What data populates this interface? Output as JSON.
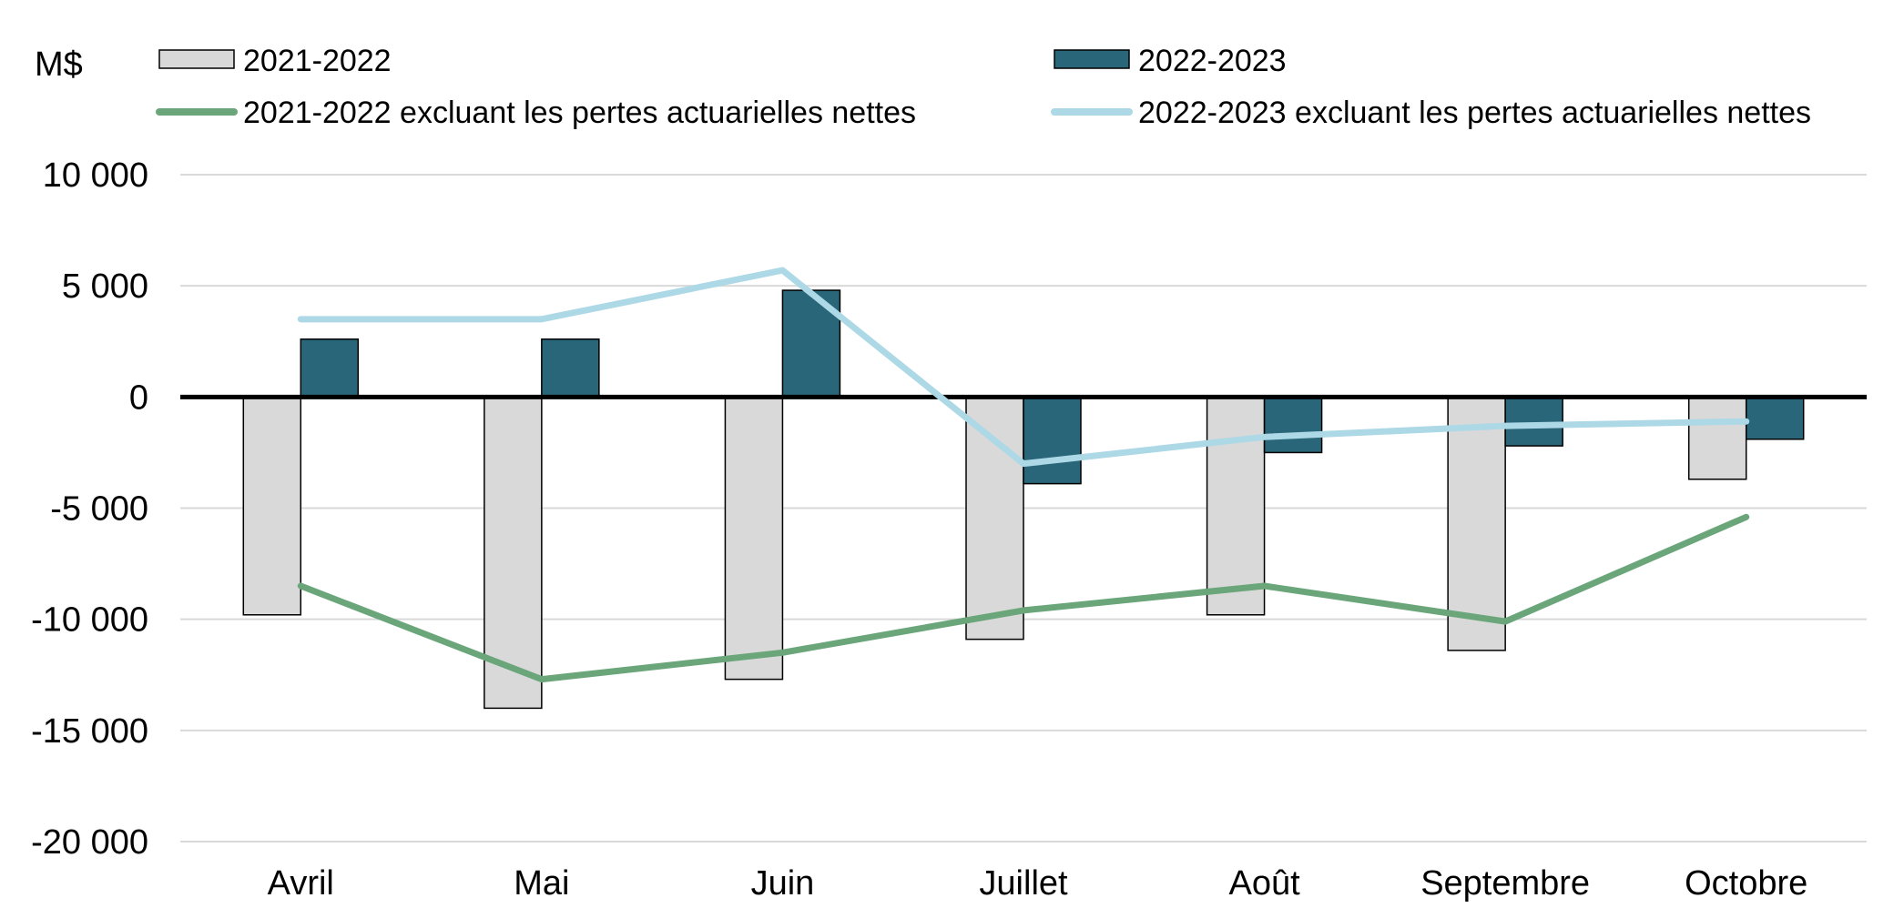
{
  "chart_data": {
    "type": "bar",
    "unit_label": "M$",
    "categories": [
      "Avril",
      "Mai",
      "Juin",
      "Juillet",
      "Août",
      "Septembre",
      "Octobre"
    ],
    "series": [
      {
        "name": "2021-2022",
        "kind": "bar",
        "color": "#d9d9d9",
        "values": [
          -9800,
          -14000,
          -12700,
          -10900,
          -9800,
          -11400,
          -3700
        ]
      },
      {
        "name": "2022-2023",
        "kind": "bar",
        "color": "#2a6679",
        "values": [
          2600,
          2600,
          4800,
          -3900,
          -2500,
          -2200,
          -1900
        ]
      },
      {
        "name": "2021-2022 excluant les pertes actuarielles nettes",
        "kind": "line",
        "color": "#6aa67a",
        "values": [
          -8500,
          -12700,
          -11500,
          -9600,
          -8500,
          -10100,
          -5400
        ]
      },
      {
        "name": "2022-2023 excluant les pertes actuarielles nettes",
        "kind": "line",
        "color": "#add8e6",
        "values": [
          3500,
          3500,
          5700,
          -3000,
          -1800,
          -1300,
          -1100
        ]
      }
    ],
    "y_ticks": [
      10000,
      5000,
      0,
      -5000,
      -10000,
      -15000,
      -20000
    ],
    "y_tick_labels": [
      "10 000",
      "5 000",
      "0",
      "-5 000",
      "-10 000",
      "-15 000",
      "-20 000"
    ],
    "ylim": [
      -20000,
      10000
    ],
    "grid": true,
    "legend_position": "top"
  }
}
